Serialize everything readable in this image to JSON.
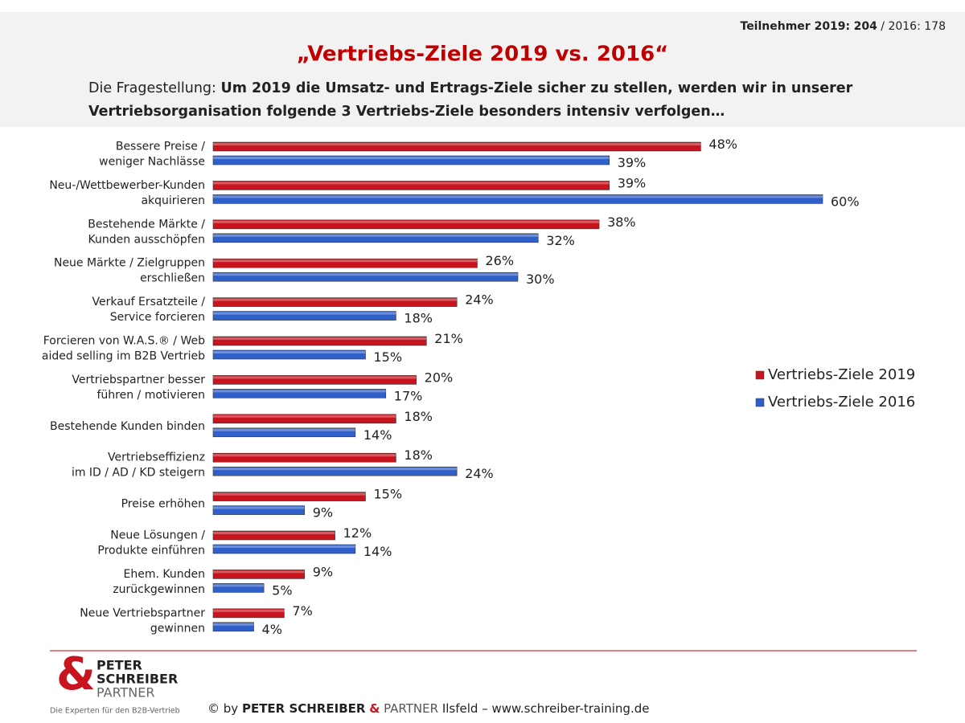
{
  "header": {
    "participants": {
      "label_2019": "Teilnehmer 2019:",
      "n_2019": 204,
      "separator": "/",
      "label_2016": "2016:",
      "n_2016": 178
    },
    "question_prefix": "Die Fragestellung:",
    "question_lines": [
      "Um 2019 die Umsatz- und Ertrags-Ziele sicher zu stellen, werden wir in unserer",
      "Vertriebsorganisation folgende 3 Vertriebs-Ziele besonders intensiv verfolgen…"
    ]
  },
  "chart_data": {
    "type": "hbar",
    "title": "„Vertriebs-Ziele 2019 vs. 2016“",
    "categories": [
      [
        "Bessere Preise /",
        "weniger Nachlässe"
      ],
      [
        "Neu-/Wettbewerber-Kunden",
        "akquirieren"
      ],
      [
        "Bestehende Märkte /",
        "Kunden ausschöpfen"
      ],
      [
        "Neue Märkte / Zielgruppen",
        "erschließen"
      ],
      [
        "Verkauf Ersatzteile /",
        "Service forcieren"
      ],
      [
        "Forcieren von W.A.S.® / Web",
        "aided selling im B2B Vertrieb"
      ],
      [
        "Vertriebspartner besser",
        "führen / motivieren"
      ],
      [
        "Bestehende Kunden binden"
      ],
      [
        "Vertriebseffizienz",
        "im ID / AD / KD steigern"
      ],
      [
        "Preise erhöhen"
      ],
      [
        "Neue Lösungen /",
        "Produkte einführen"
      ],
      [
        "Ehem. Kunden",
        "zurückgewinnen"
      ],
      [
        "Neue Vertriebspartner",
        "gewinnen"
      ]
    ],
    "series": [
      {
        "name": "Vertriebs-Ziele 2019",
        "color": "#c8141e",
        "values": [
          48,
          39,
          38,
          26,
          24,
          21,
          20,
          18,
          18,
          15,
          12,
          9,
          7
        ],
        "value_labels": [
          "48%",
          "39%",
          "38%",
          "26%",
          "24%",
          "21%",
          "20%",
          "18%",
          "18%",
          "15%",
          "12%",
          "9%",
          "7%"
        ]
      },
      {
        "name": "Vertriebs-Ziele 2016",
        "color": "#2f5fc8",
        "values": [
          39,
          60,
          32,
          30,
          18,
          15,
          17,
          14,
          24,
          9,
          14,
          5,
          4
        ],
        "value_labels": [
          "39%",
          "60%",
          "32%",
          "30%",
          "18%",
          "15%",
          "17%",
          "14%",
          "24%",
          "9%",
          "14%",
          "5%",
          "4%"
        ]
      }
    ],
    "legend": "right"
  },
  "footer": {
    "logo": {
      "amp": "&",
      "line1": "PETER",
      "line2": "SCHREIBER",
      "line3": "PARTNER",
      "tagline": "Die Experten für den B2B-Vertrieb"
    },
    "copyright": {
      "prefix": "© by",
      "name1": "PETER SCHREIBER",
      "amp": "&",
      "name2": "PARTNER",
      "suffix": "Ilsfeld – www.schreiber-training.de"
    }
  }
}
